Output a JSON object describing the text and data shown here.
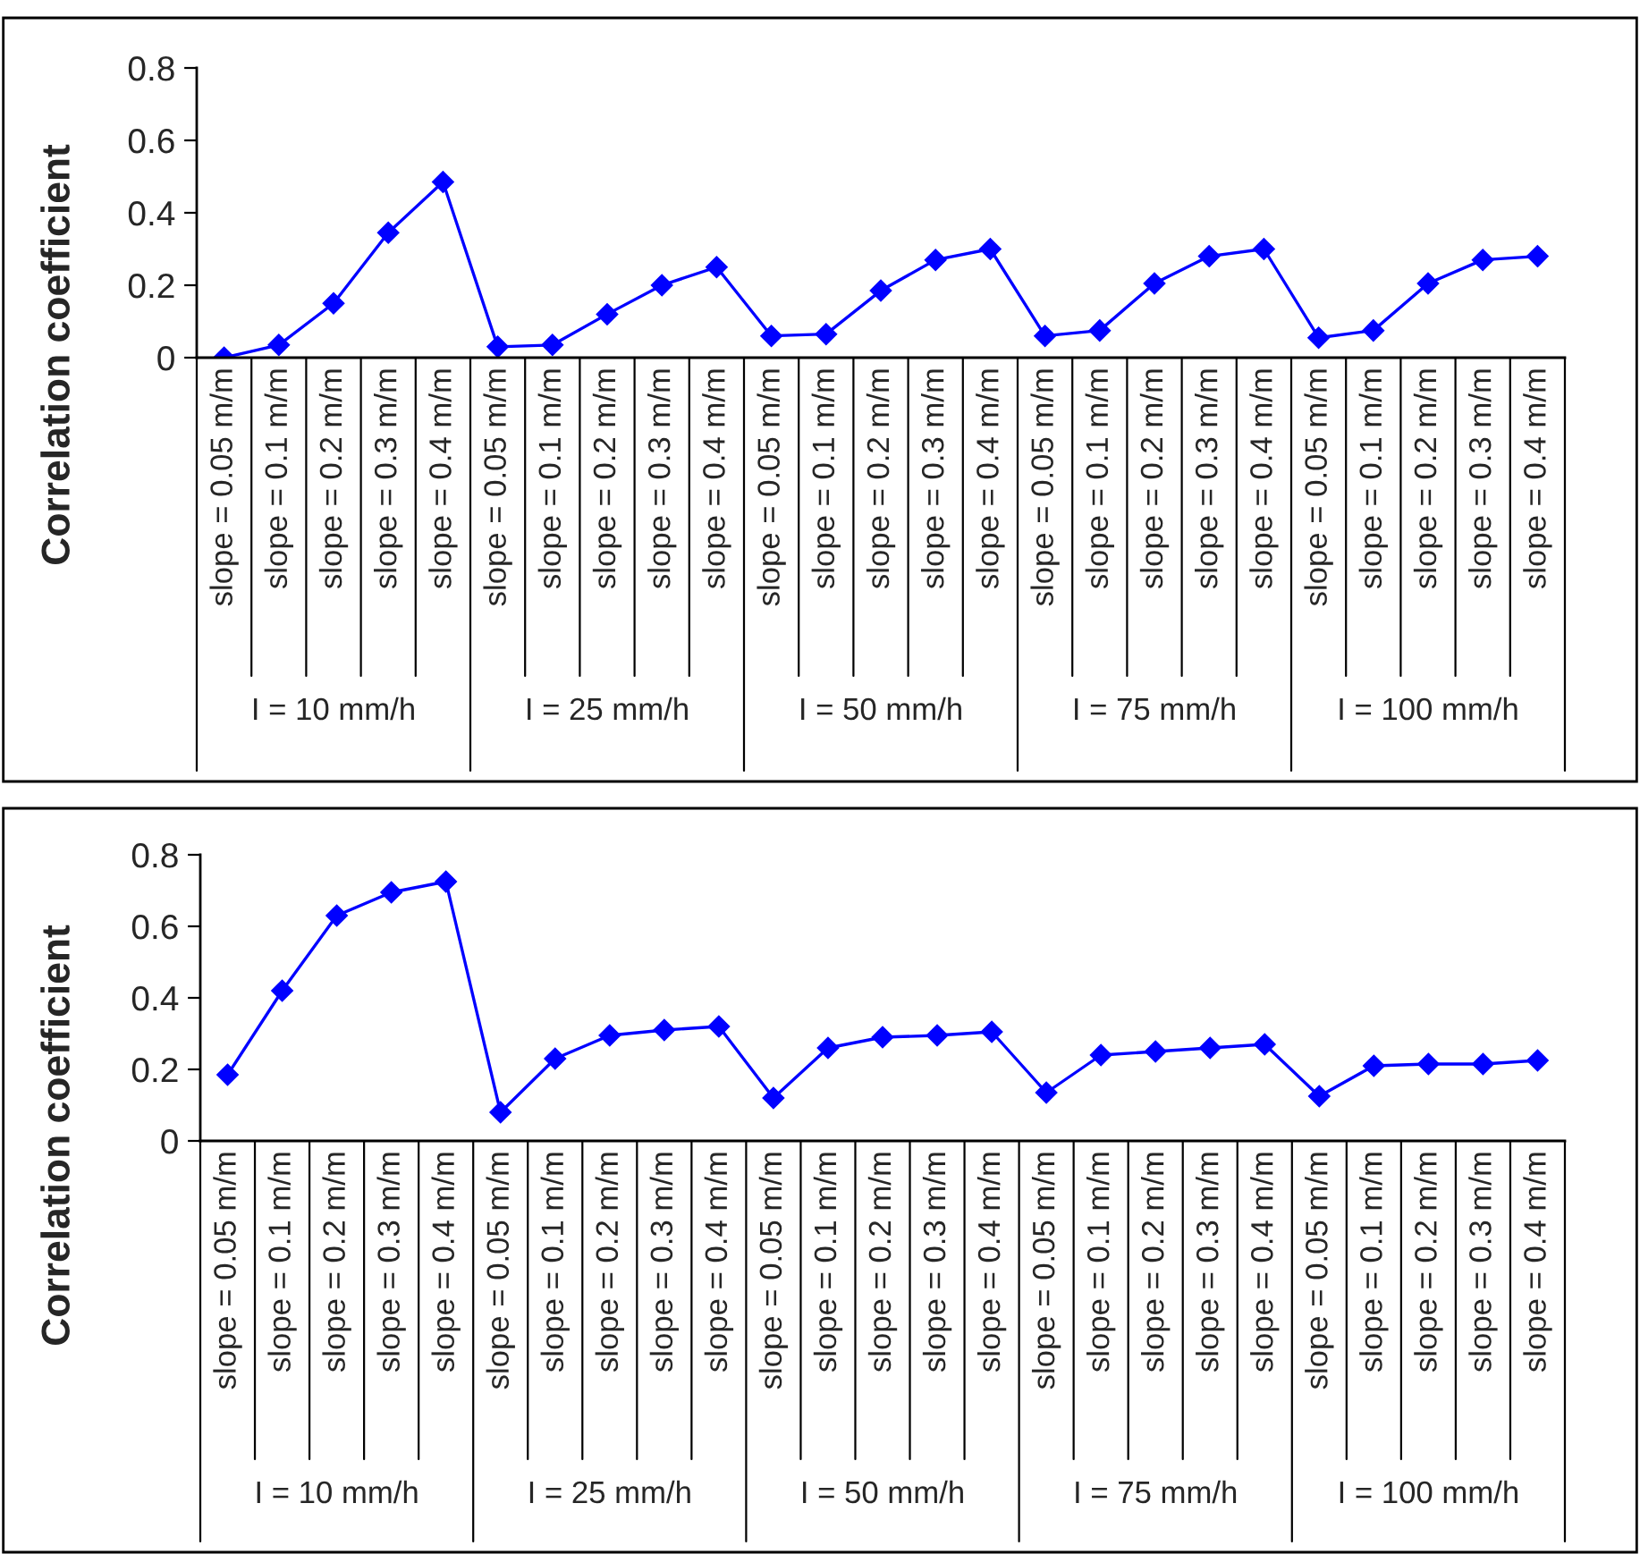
{
  "chart_data": [
    {
      "type": "line",
      "ylabel": "Correlation coefficient",
      "categories": [
        "slope = 0.05 m/m",
        "slope = 0.1 m/m",
        "slope = 0.2 m/m",
        "slope = 0.3 m/m",
        "slope = 0.4 m/m",
        "slope = 0.05 m/m",
        "slope = 0.1 m/m",
        "slope = 0.2 m/m",
        "slope = 0.3 m/m",
        "slope = 0.4 m/m",
        "slope = 0.05 m/m",
        "slope = 0.1 m/m",
        "slope = 0.2 m/m",
        "slope = 0.3 m/m",
        "slope = 0.4 m/m",
        "slope = 0.05 m/m",
        "slope = 0.1 m/m",
        "slope = 0.2 m/m",
        "slope = 0.3 m/m",
        "slope = 0.4 m/m",
        "slope = 0.05 m/m",
        "slope = 0.1 m/m",
        "slope = 0.2 m/m",
        "slope = 0.3 m/m",
        "slope = 0.4 m/m"
      ],
      "series": [
        {
          "color": "#0000ff",
          "values": [
            0,
            0.035,
            0.15,
            0.345,
            0.485,
            0.03,
            0.035,
            0.12,
            0.2,
            0.25,
            0.06,
            0.065,
            0.185,
            0.27,
            0.3,
            0.06,
            0.075,
            0.205,
            0.28,
            0.3,
            0.055,
            0.075,
            0.205,
            0.27,
            0.28
          ]
        }
      ],
      "annotations": [
        "I = 10 mm/h",
        "I = 25 mm/h",
        "I = 50 mm/h",
        "I = 75 mm/h",
        "I = 100 mm/h"
      ],
      "ylim": [
        0,
        0.8
      ],
      "yticks": [
        0,
        0.2,
        0.4,
        0.6,
        0.8
      ],
      "grid": false,
      "legend": false,
      "marker": "diamond",
      "line_style": "solid"
    },
    {
      "type": "line",
      "ylabel": "Correlation coefficient",
      "categories": [
        "slope = 0.05 m/m",
        "slope = 0.1 m/m",
        "slope = 0.2 m/m",
        "slope = 0.3 m/m",
        "slope = 0.4 m/m",
        "slope = 0.05 m/m",
        "slope = 0.1 m/m",
        "slope = 0.2 m/m",
        "slope = 0.3 m/m",
        "slope = 0.4 m/m",
        "slope = 0.05 m/m",
        "slope = 0.1 m/m",
        "slope = 0.2 m/m",
        "slope = 0.3 m/m",
        "slope = 0.4 m/m",
        "slope = 0.05 m/m",
        "slope = 0.1 m/m",
        "slope = 0.2 m/m",
        "slope = 0.3 m/m",
        "slope = 0.4 m/m",
        "slope = 0.05 m/m",
        "slope = 0.1 m/m",
        "slope = 0.2 m/m",
        "slope = 0.3 m/m",
        "slope = 0.4 m/m"
      ],
      "series": [
        {
          "color": "#0000ff",
          "values": [
            0.185,
            0.42,
            0.63,
            0.695,
            0.725,
            0.08,
            0.23,
            0.295,
            0.31,
            0.32,
            0.12,
            0.26,
            0.29,
            0.295,
            0.305,
            0.135,
            0.24,
            0.25,
            0.26,
            0.27,
            0.125,
            0.21,
            0.215,
            0.215,
            0.225
          ]
        }
      ],
      "annotations": [
        "I = 10 mm/h",
        "I = 25 mm/h",
        "I = 50 mm/h",
        "I = 75 mm/h",
        "I = 100 mm/h"
      ],
      "ylim": [
        0,
        0.8
      ],
      "yticks": [
        0,
        0.2,
        0.4,
        0.6,
        0.8
      ],
      "grid": false,
      "legend": false,
      "marker": "diamond",
      "line_style": "solid"
    }
  ]
}
